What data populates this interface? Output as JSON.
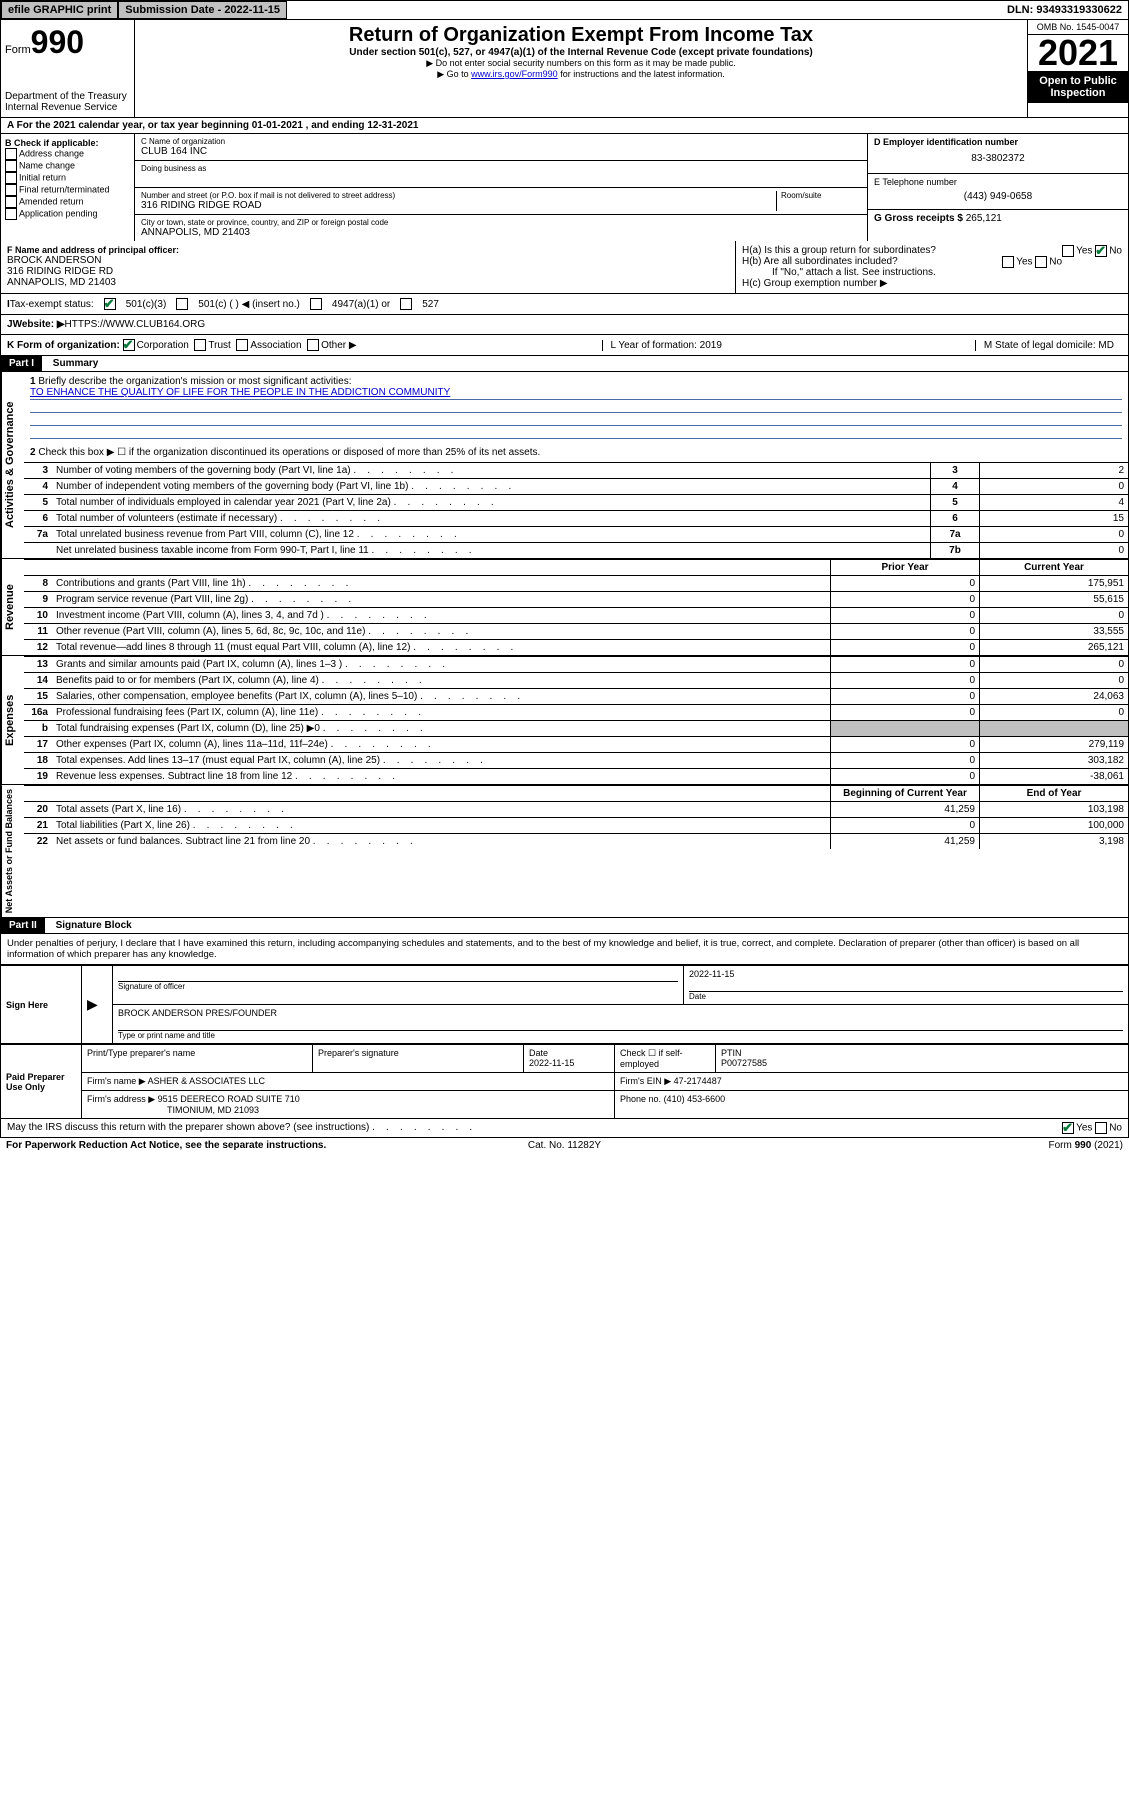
{
  "topbar": {
    "efile": "efile GRAPHIC print",
    "submission": "Submission Date - 2022-11-15",
    "dln": "DLN: 93493319330622"
  },
  "header": {
    "form_prefix": "Form",
    "form_num": "990",
    "title": "Return of Organization Exempt From Income Tax",
    "subtitle": "Under section 501(c), 527, or 4947(a)(1) of the Internal Revenue Code (except private foundations)",
    "note1": "▶ Do not enter social security numbers on this form as it may be made public.",
    "note2_pre": "▶ Go to ",
    "note2_link": "www.irs.gov/Form990",
    "note2_post": " for instructions and the latest information.",
    "dept": "Department of the Treasury",
    "irs": "Internal Revenue Service",
    "omb": "OMB No. 1545-0047",
    "year": "2021",
    "open": "Open to Public Inspection"
  },
  "row_a": "A For the 2021 calendar year, or tax year beginning 01-01-2021   , and ending 12-31-2021",
  "col_b": {
    "title": "B Check if applicable:",
    "items": [
      "Address change",
      "Name change",
      "Initial return",
      "Final return/terminated",
      "Amended return",
      "Application pending"
    ]
  },
  "col_c": {
    "c_label": "C Name of organization",
    "org": "CLUB 164 INC",
    "dba": "Doing business as",
    "addr_label": "Number and street (or P.O. box if mail is not delivered to street address)",
    "room": "Room/suite",
    "addr": "316 RIDING RIDGE ROAD",
    "city_label": "City or town, state or province, country, and ZIP or foreign postal code",
    "city": "ANNAPOLIS, MD  21403"
  },
  "col_d": {
    "d_label": "D Employer identification number",
    "ein": "83-3802372",
    "e_label": "E Telephone number",
    "phone": "(443) 949-0658",
    "g_label": "G Gross receipts $",
    "gross": "265,121"
  },
  "officer": {
    "f_label": "F Name and address of principal officer:",
    "name": "BROCK ANDERSON",
    "addr1": "316 RIDING RIDGE RD",
    "addr2": "ANNAPOLIS, MD  21403"
  },
  "h": {
    "ha": "H(a)  Is this a group return for subordinates?",
    "hb": "H(b)  Are all subordinates included?",
    "hb_note": "If \"No,\" attach a list. See instructions.",
    "hc": "H(c)  Group exemption number ▶",
    "yes": "Yes",
    "no": "No"
  },
  "status": {
    "i": "I",
    "label": "Tax-exempt status:",
    "s1": "501(c)(3)",
    "s2": "501(c) (  ) ◀ (insert no.)",
    "s3": "4947(a)(1) or",
    "s4": "527"
  },
  "website": {
    "j": "J",
    "label": "Website: ▶",
    "url": "HTTPS://WWW.CLUB164.ORG"
  },
  "korg": {
    "k": "K Form of organization:",
    "opts": [
      "Corporation",
      "Trust",
      "Association",
      "Other ▶"
    ],
    "l": "L Year of formation: 2019",
    "m": "M State of legal domicile: MD"
  },
  "part1": {
    "hdr": "Part I",
    "title": "Summary"
  },
  "verticals": {
    "v1": "Activities & Governance",
    "v2": "Revenue",
    "v3": "Expenses",
    "v4": "Net Assets or Fund Balances"
  },
  "mission": {
    "num": "1",
    "label": "Briefly describe the organization's mission or most significant activities:",
    "text": "TO ENHANCE THE QUALITY OF LIFE FOR THE PEOPLE IN THE ADDICTION COMMUNITY"
  },
  "line2": "Check this box ▶ ☐  if the organization discontinued its operations or disposed of more than 25% of its net assets.",
  "gov_lines": [
    {
      "n": "3",
      "t": "Number of voting members of the governing body (Part VI, line 1a)",
      "k": "3",
      "v": "2"
    },
    {
      "n": "4",
      "t": "Number of independent voting members of the governing body (Part VI, line 1b)",
      "k": "4",
      "v": "0"
    },
    {
      "n": "5",
      "t": "Total number of individuals employed in calendar year 2021 (Part V, line 2a)",
      "k": "5",
      "v": "4"
    },
    {
      "n": "6",
      "t": "Total number of volunteers (estimate if necessary)",
      "k": "6",
      "v": "15"
    },
    {
      "n": "7a",
      "t": "Total unrelated business revenue from Part VIII, column (C), line 12",
      "k": "7a",
      "v": "0"
    },
    {
      "n": "",
      "t": "Net unrelated business taxable income from Form 990-T, Part I, line 11",
      "k": "7b",
      "v": "0"
    }
  ],
  "col_hdrs": {
    "prior": "Prior Year",
    "current": "Current Year"
  },
  "rev_lines": [
    {
      "n": "8",
      "t": "Contributions and grants (Part VIII, line 1h)",
      "p": "0",
      "c": "175,951"
    },
    {
      "n": "9",
      "t": "Program service revenue (Part VIII, line 2g)",
      "p": "0",
      "c": "55,615"
    },
    {
      "n": "10",
      "t": "Investment income (Part VIII, column (A), lines 3, 4, and 7d )",
      "p": "0",
      "c": "0"
    },
    {
      "n": "11",
      "t": "Other revenue (Part VIII, column (A), lines 5, 6d, 8c, 9c, 10c, and 11e)",
      "p": "0",
      "c": "33,555"
    },
    {
      "n": "12",
      "t": "Total revenue—add lines 8 through 11 (must equal Part VIII, column (A), line 12)",
      "p": "0",
      "c": "265,121"
    }
  ],
  "exp_lines": [
    {
      "n": "13",
      "t": "Grants and similar amounts paid (Part IX, column (A), lines 1–3 )",
      "p": "0",
      "c": "0"
    },
    {
      "n": "14",
      "t": "Benefits paid to or for members (Part IX, column (A), line 4)",
      "p": "0",
      "c": "0"
    },
    {
      "n": "15",
      "t": "Salaries, other compensation, employee benefits (Part IX, column (A), lines 5–10)",
      "p": "0",
      "c": "24,063"
    },
    {
      "n": "16a",
      "t": "Professional fundraising fees (Part IX, column (A), line 11e)",
      "p": "0",
      "c": "0"
    },
    {
      "n": "b",
      "t": "Total fundraising expenses (Part IX, column (D), line 25) ▶0",
      "p": "",
      "c": "",
      "grey": true
    },
    {
      "n": "17",
      "t": "Other expenses (Part IX, column (A), lines 11a–11d, 11f–24e)",
      "p": "0",
      "c": "279,119"
    },
    {
      "n": "18",
      "t": "Total expenses. Add lines 13–17 (must equal Part IX, column (A), line 25)",
      "p": "0",
      "c": "303,182"
    },
    {
      "n": "19",
      "t": "Revenue less expenses. Subtract line 18 from line 12",
      "p": "0",
      "c": "-38,061"
    }
  ],
  "net_hdrs": {
    "begin": "Beginning of Current Year",
    "end": "End of Year"
  },
  "net_lines": [
    {
      "n": "20",
      "t": "Total assets (Part X, line 16)",
      "p": "41,259",
      "c": "103,198"
    },
    {
      "n": "21",
      "t": "Total liabilities (Part X, line 26)",
      "p": "0",
      "c": "100,000"
    },
    {
      "n": "22",
      "t": "Net assets or fund balances. Subtract line 21 from line 20",
      "p": "41,259",
      "c": "3,198"
    }
  ],
  "part2": {
    "hdr": "Part II",
    "title": "Signature Block"
  },
  "perjury": "Under penalties of perjury, I declare that I have examined this return, including accompanying schedules and statements, and to the best of my knowledge and belief, it is true, correct, and complete. Declaration of preparer (other than officer) is based on all information of which preparer has any knowledge.",
  "sign": {
    "here": "Sign Here",
    "sig_officer": "Signature of officer",
    "date_lbl": "Date",
    "date_val": "2022-11-15",
    "name": "BROCK ANDERSON PRES/FOUNDER",
    "typed": "Type or print name and title"
  },
  "paid": {
    "title": "Paid Preparer Use Only",
    "pt_name": "Print/Type preparer's name",
    "prep_sig": "Preparer's signature",
    "date_lbl": "Date",
    "date": "2022-11-15",
    "check_lbl": "Check ☐ if self-employed",
    "ptin_lbl": "PTIN",
    "ptin": "P00727585",
    "firm_name_lbl": "Firm's name    ▶",
    "firm_name": "ASHER & ASSOCIATES LLC",
    "firm_ein_lbl": "Firm's EIN ▶",
    "firm_ein": "47-2174487",
    "firm_addr_lbl": "Firm's address ▶",
    "firm_addr1": "9515 DEERECO ROAD SUITE 710",
    "firm_addr2": "TIMONIUM, MD  21093",
    "phone_lbl": "Phone no.",
    "phone": "(410) 453-6600"
  },
  "discuss": "May the IRS discuss this return with the preparer shown above? (see instructions)",
  "footer": {
    "pra": "For Paperwork Reduction Act Notice, see the separate instructions.",
    "cat": "Cat. No. 11282Y",
    "form": "Form 990 (2021)"
  }
}
